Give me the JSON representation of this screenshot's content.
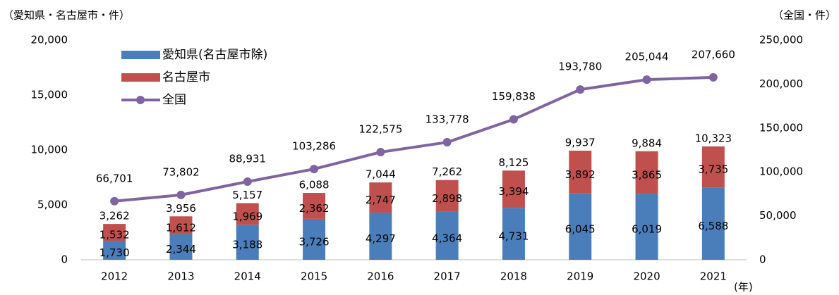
{
  "chart_data": {
    "type": "bar-line",
    "y_title": "（愛知県・名古屋市・件）",
    "y2_title": "（全国・件）",
    "x_title": "(年)",
    "categories": [
      "2012",
      "2013",
      "2014",
      "2015",
      "2016",
      "2017",
      "2018",
      "2019",
      "2020",
      "2021"
    ],
    "series": [
      {
        "name": "愛知県(名古屋市除)",
        "color": "#4a7ebb",
        "kind": "bar",
        "values": [
          1730,
          2344,
          3188,
          3726,
          4297,
          4364,
          4731,
          6045,
          6019,
          6588
        ],
        "value_labels": [
          "1,730",
          "2,344",
          "3,188",
          "3,726",
          "4,297",
          "4,364",
          "4,731",
          "6,045",
          "6,019",
          "6,588"
        ]
      },
      {
        "name": "名古屋市",
        "color": "#c0504d",
        "kind": "bar",
        "values": [
          1532,
          1612,
          1969,
          2362,
          2747,
          2898,
          3394,
          3892,
          3865,
          3735
        ],
        "value_labels": [
          "1,532",
          "1,612",
          "1,969",
          "2,362",
          "2,747",
          "2,898",
          "3,394",
          "3,892",
          "3,865",
          "3,735"
        ]
      },
      {
        "name": "全国",
        "color": "#8064a2",
        "kind": "line",
        "axis": "y2",
        "values": [
          66701,
          73802,
          88931,
          103286,
          122575,
          133778,
          159838,
          193780,
          205044,
          207660
        ],
        "value_labels": [
          "66,701",
          "73,802",
          "88,931",
          "103,286",
          "122,575",
          "133,778",
          "159,838",
          "193,780",
          "205,044",
          "207,660"
        ]
      }
    ],
    "total_labels": [
      "3,262",
      "3,956",
      "5,157",
      "6,088",
      "7,044",
      "7,262",
      "8,125",
      "9,937",
      "9,884",
      "10,323"
    ],
    "ylim": [
      0,
      20000
    ],
    "yticks": [
      0,
      {
        "value": 5000,
        "label": "5,000"
      },
      {
        "value": 10000,
        "label": "10,000"
      },
      {
        "value": 15000,
        "label": "15,000"
      },
      {
        "value": 20000,
        "label": "20,000"
      }
    ],
    "y2lim": [
      0,
      250000
    ],
    "y2ticks": [
      0,
      {
        "value": 50000,
        "label": "50,000"
      },
      {
        "value": 100000,
        "label": "100,000"
      },
      {
        "value": 150000,
        "label": "150,000"
      },
      {
        "value": 200000,
        "label": "200,000"
      },
      {
        "value": 250000,
        "label": "250,000"
      }
    ]
  }
}
